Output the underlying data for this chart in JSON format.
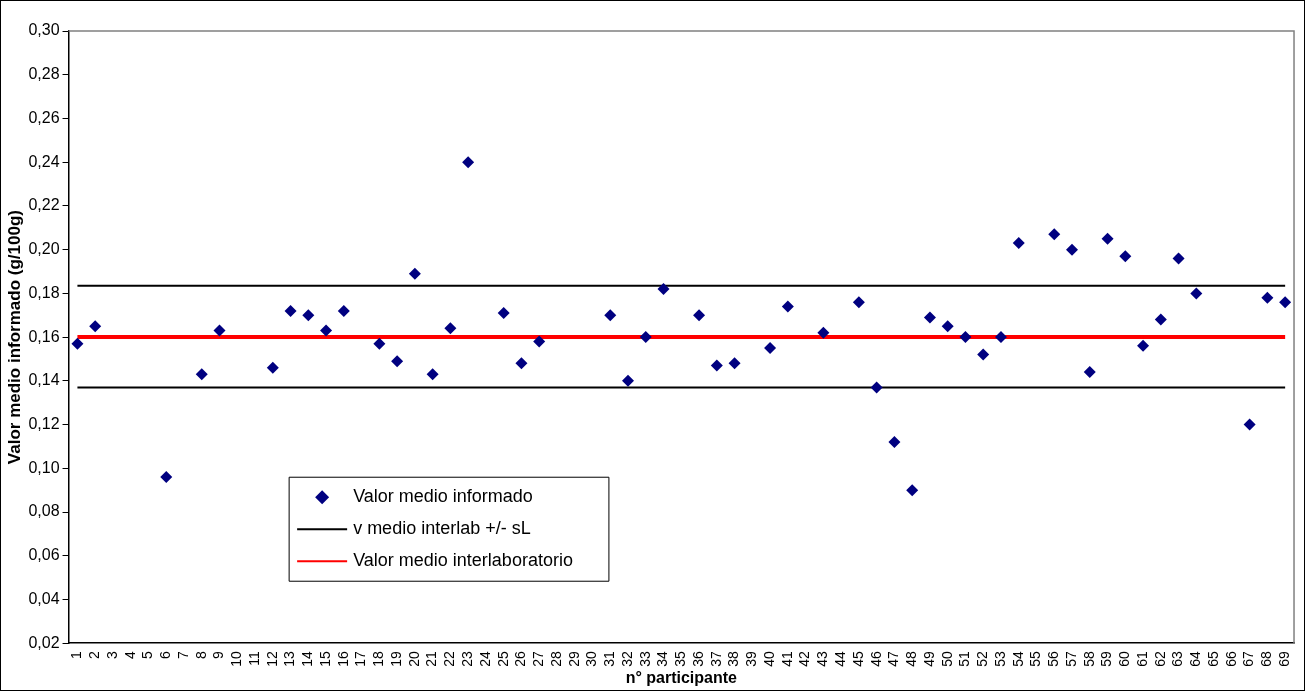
{
  "chart_data": {
    "type": "scatter",
    "xlabel": "n° participante",
    "ylabel": "Valor medio informado (g/100g)",
    "categories": [
      "1",
      "2",
      "3",
      "4",
      "5",
      "6",
      "7",
      "8",
      "9",
      "10",
      "11",
      "12",
      "13",
      "14",
      "15",
      "16",
      "17",
      "18",
      "19",
      "20",
      "21",
      "22",
      "23",
      "24",
      "25",
      "26",
      "27",
      "28",
      "29",
      "30",
      "31",
      "32",
      "33",
      "34",
      "35",
      "36",
      "37",
      "38",
      "39",
      "40",
      "41",
      "42",
      "43",
      "44",
      "45",
      "46",
      "47",
      "48",
      "49",
      "50",
      "51",
      "52",
      "53",
      "54",
      "55",
      "56",
      "57",
      "58",
      "59",
      "60",
      "61",
      "62",
      "63",
      "64",
      "65",
      "66",
      "67",
      "68",
      "69"
    ],
    "series": [
      {
        "name": "Valor medio informado",
        "color": "#000080",
        "values": [
          0.157,
          0.165,
          null,
          null,
          null,
          0.096,
          null,
          0.143,
          0.163,
          null,
          null,
          0.146,
          0.172,
          0.17,
          0.163,
          0.172,
          null,
          0.157,
          0.149,
          0.189,
          0.143,
          0.164,
          0.24,
          null,
          0.171,
          0.148,
          0.158,
          null,
          null,
          null,
          0.17,
          0.14,
          0.16,
          0.182,
          null,
          0.17,
          0.147,
          0.148,
          null,
          0.155,
          0.174,
          null,
          0.162,
          null,
          0.176,
          0.137,
          0.112,
          0.09,
          0.169,
          0.165,
          0.16,
          0.152,
          0.16,
          0.203,
          null,
          0.207,
          0.2,
          0.144,
          0.205,
          0.197,
          0.156,
          0.168,
          0.196,
          0.18,
          null,
          null,
          0.12,
          0.178,
          0.176
        ]
      }
    ],
    "ref_lines": [
      {
        "axis": "y",
        "value": 0.1835,
        "label": "v medio interlab +/- sL",
        "color": "#000000"
      },
      {
        "axis": "y",
        "value": 0.137,
        "color": "#000000"
      },
      {
        "axis": "y",
        "value": 0.16,
        "label": "Valor medio interlaboratorio",
        "color": "#ff0000"
      }
    ],
    "ylim": [
      0.02,
      0.3
    ],
    "yticks": [
      {
        "value": 0.02,
        "label": "0,02"
      },
      {
        "value": 0.04,
        "label": "0,04"
      },
      {
        "value": 0.06,
        "label": "0,06"
      },
      {
        "value": 0.08,
        "label": "0,08"
      },
      {
        "value": 0.1,
        "label": "0,10"
      },
      {
        "value": 0.12,
        "label": "0,12"
      },
      {
        "value": 0.14,
        "label": "0,14"
      },
      {
        "value": 0.16,
        "label": "0,16"
      },
      {
        "value": 0.18,
        "label": "0,18"
      },
      {
        "value": 0.2,
        "label": "0,20"
      },
      {
        "value": 0.22,
        "label": "0,22"
      },
      {
        "value": 0.24,
        "label": "0,24"
      },
      {
        "value": 0.26,
        "label": "0,26"
      },
      {
        "value": 0.28,
        "label": "0,28"
      },
      {
        "value": 0.3,
        "label": "0,30"
      }
    ],
    "marker": "diamond",
    "grid": false,
    "legend": "bottom left"
  }
}
